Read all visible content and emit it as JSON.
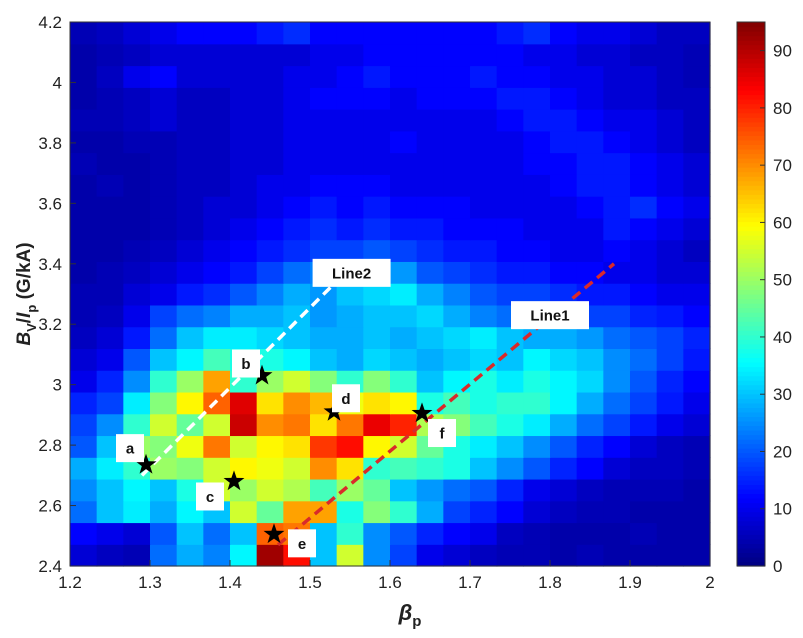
{
  "chart_data": {
    "type": "heatmap",
    "xlabel": "β",
    "xlabel_sub": "p",
    "ylabel_parts": [
      "B",
      "V",
      "/",
      "I",
      "p",
      " (G/kA)"
    ],
    "xlim": [
      1.2,
      2.0
    ],
    "ylim": [
      2.4,
      4.2
    ],
    "x_ticks": [
      "1.2",
      "1.3",
      "1.4",
      "1.5",
      "1.6",
      "1.7",
      "1.8",
      "1.9",
      "2"
    ],
    "y_ticks": [
      "2.4",
      "2.6",
      "2.8",
      "3",
      "3.2",
      "3.4",
      "3.6",
      "3.8",
      "4",
      "4.2"
    ],
    "colorbar": {
      "min": 0,
      "max": 95,
      "ticks": [
        "0",
        "10",
        "20",
        "30",
        "40",
        "50",
        "60",
        "70",
        "80",
        "90"
      ]
    },
    "grid": false,
    "bins": {
      "nx": 24,
      "ny": 25,
      "x_range": [
        1.2,
        2.0
      ],
      "y_range": [
        2.4,
        4.2
      ]
    },
    "values": [
      [
        8,
        6,
        5,
        22,
        28,
        24,
        35,
        92,
        82,
        30,
        55,
        25,
        18,
        10,
        8,
        6,
        5,
        5,
        4,
        5,
        4,
        4,
        4,
        4
      ],
      [
        12,
        10,
        8,
        20,
        30,
        22,
        30,
        74,
        72,
        30,
        40,
        25,
        20,
        15,
        12,
        10,
        6,
        5,
        4,
        4,
        4,
        5,
        4,
        4
      ],
      [
        22,
        30,
        34,
        28,
        35,
        30,
        55,
        45,
        68,
        68,
        38,
        48,
        40,
        28,
        18,
        15,
        12,
        8,
        6,
        5,
        5,
        4,
        4,
        4
      ],
      [
        25,
        30,
        35,
        30,
        38,
        55,
        50,
        55,
        52,
        42,
        50,
        45,
        30,
        26,
        22,
        20,
        15,
        10,
        8,
        6,
        5,
        5,
        5,
        4
      ],
      [
        28,
        34,
        40,
        50,
        48,
        55,
        60,
        58,
        55,
        70,
        62,
        40,
        42,
        40,
        38,
        30,
        25,
        20,
        15,
        12,
        8,
        6,
        6,
        5
      ],
      [
        20,
        30,
        50,
        48,
        58,
        72,
        55,
        60,
        62,
        78,
        82,
        60,
        55,
        45,
        38,
        34,
        30,
        25,
        20,
        15,
        12,
        8,
        6,
        5
      ],
      [
        18,
        25,
        40,
        55,
        45,
        55,
        88,
        70,
        72,
        62,
        72,
        85,
        80,
        52,
        48,
        42,
        38,
        34,
        28,
        22,
        18,
        14,
        10,
        8
      ],
      [
        15,
        18,
        34,
        48,
        60,
        74,
        86,
        62,
        70,
        66,
        58,
        62,
        60,
        38,
        42,
        38,
        40,
        40,
        35,
        28,
        22,
        18,
        14,
        10
      ],
      [
        10,
        15,
        25,
        40,
        50,
        68,
        40,
        50,
        55,
        48,
        40,
        48,
        40,
        30,
        35,
        38,
        34,
        38,
        35,
        32,
        25,
        20,
        15,
        12
      ],
      [
        8,
        10,
        20,
        30,
        35,
        42,
        38,
        38,
        35,
        30,
        28,
        32,
        30,
        28,
        30,
        32,
        30,
        35,
        32,
        30,
        25,
        22,
        18,
        14
      ],
      [
        6,
        8,
        14,
        22,
        30,
        34,
        34,
        32,
        30,
        28,
        28,
        30,
        28,
        30,
        32,
        34,
        30,
        28,
        28,
        26,
        22,
        20,
        18,
        15
      ],
      [
        5,
        6,
        10,
        18,
        22,
        24,
        28,
        28,
        30,
        26,
        28,
        30,
        30,
        32,
        28,
        24,
        22,
        24,
        20,
        18,
        18,
        15,
        14,
        12
      ],
      [
        5,
        5,
        8,
        10,
        14,
        16,
        20,
        24,
        28,
        26,
        30,
        32,
        34,
        28,
        24,
        20,
        18,
        18,
        16,
        14,
        14,
        12,
        10,
        10
      ],
      [
        4,
        5,
        6,
        8,
        10,
        12,
        14,
        18,
        22,
        24,
        26,
        28,
        26,
        20,
        18,
        16,
        14,
        14,
        12,
        12,
        10,
        10,
        8,
        8
      ],
      [
        4,
        4,
        5,
        6,
        8,
        10,
        12,
        14,
        16,
        18,
        18,
        20,
        18,
        16,
        14,
        14,
        12,
        12,
        10,
        10,
        12,
        10,
        8,
        6
      ],
      [
        4,
        4,
        4,
        5,
        6,
        8,
        10,
        12,
        14,
        16,
        14,
        16,
        14,
        14,
        12,
        12,
        12,
        10,
        10,
        10,
        14,
        12,
        10,
        8
      ],
      [
        4,
        4,
        4,
        5,
        6,
        8,
        8,
        10,
        12,
        14,
        12,
        14,
        12,
        12,
        12,
        10,
        10,
        10,
        10,
        12,
        14,
        16,
        12,
        10
      ],
      [
        4,
        5,
        4,
        5,
        6,
        6,
        8,
        10,
        10,
        12,
        12,
        12,
        10,
        10,
        10,
        10,
        10,
        10,
        12,
        14,
        14,
        12,
        10,
        8
      ],
      [
        5,
        4,
        4,
        5,
        6,
        6,
        8,
        8,
        10,
        10,
        10,
        10,
        10,
        10,
        10,
        10,
        10,
        12,
        12,
        14,
        14,
        12,
        10,
        8
      ],
      [
        4,
        4,
        5,
        5,
        6,
        6,
        8,
        8,
        10,
        10,
        10,
        10,
        12,
        10,
        10,
        10,
        10,
        12,
        14,
        14,
        12,
        10,
        8,
        6
      ],
      [
        5,
        5,
        6,
        8,
        6,
        6,
        8,
        8,
        10,
        10,
        10,
        10,
        10,
        10,
        10,
        10,
        12,
        14,
        14,
        12,
        10,
        10,
        8,
        6
      ],
      [
        4,
        5,
        6,
        8,
        6,
        6,
        8,
        8,
        10,
        12,
        12,
        12,
        10,
        12,
        12,
        12,
        14,
        14,
        12,
        10,
        8,
        8,
        6,
        6
      ],
      [
        4,
        6,
        10,
        12,
        8,
        8,
        8,
        8,
        10,
        10,
        12,
        14,
        12,
        12,
        12,
        14,
        12,
        12,
        10,
        10,
        8,
        8,
        6,
        5
      ],
      [
        4,
        5,
        6,
        8,
        8,
        8,
        8,
        8,
        8,
        10,
        10,
        12,
        12,
        12,
        12,
        12,
        12,
        10,
        10,
        8,
        8,
        6,
        6,
        5
      ],
      [
        5,
        6,
        8,
        10,
        12,
        12,
        12,
        14,
        16,
        12,
        12,
        12,
        12,
        12,
        12,
        12,
        14,
        16,
        12,
        10,
        10,
        8,
        6,
        6
      ]
    ],
    "stars": [
      {
        "x": 1.295,
        "y": 2.735
      },
      {
        "x": 1.44,
        "y": 3.03
      },
      {
        "x": 1.405,
        "y": 2.68
      },
      {
        "x": 1.53,
        "y": 2.91
      },
      {
        "x": 1.455,
        "y": 2.505
      },
      {
        "x": 1.64,
        "y": 2.905
      }
    ],
    "lines": [
      {
        "name": "Line1",
        "color": "#d92a2a",
        "x": [
          1.46,
          1.88
        ],
        "y": [
          2.47,
          3.4
        ]
      },
      {
        "name": "Line2",
        "color": "#ffffff",
        "x": [
          1.29,
          1.54
        ],
        "y": [
          2.7,
          3.36
        ]
      }
    ],
    "annotations": [
      {
        "text": "a",
        "x": 1.275,
        "y": 2.79
      },
      {
        "text": "b",
        "x": 1.42,
        "y": 3.07
      },
      {
        "text": "c",
        "x": 1.375,
        "y": 2.63
      },
      {
        "text": "d",
        "x": 1.545,
        "y": 2.955
      },
      {
        "text": "e",
        "x": 1.49,
        "y": 2.475
      },
      {
        "text": "f",
        "x": 1.665,
        "y": 2.84
      },
      {
        "text": "Line2",
        "x": 1.552,
        "y": 3.37
      },
      {
        "text": "Line1",
        "x": 1.8,
        "y": 3.23
      }
    ]
  }
}
